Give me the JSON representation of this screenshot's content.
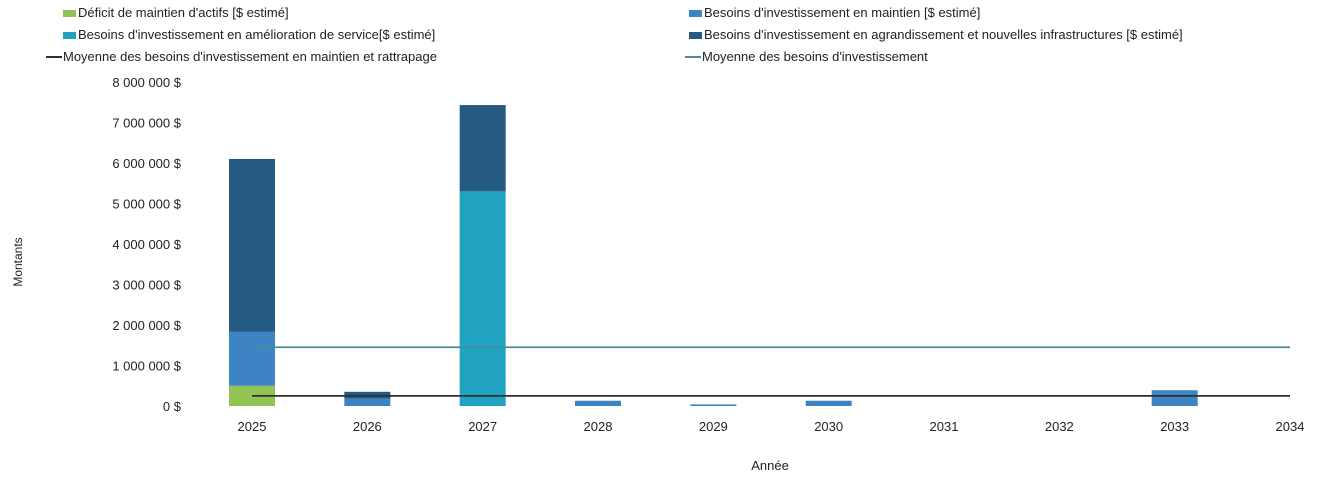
{
  "chart_data": {
    "type": "bar",
    "categories": [
      "2025",
      "2026",
      "2027",
      "2028",
      "2029",
      "2030",
      "2031",
      "2032",
      "2033",
      "2034"
    ],
    "series": [
      {
        "name": "Déficit de maintien d'actifs [$ estimé]",
        "color": "#92c353",
        "values": [
          500000,
          0,
          0,
          0,
          0,
          0,
          0,
          0,
          0,
          0
        ]
      },
      {
        "name": "Besoins d'investissement en maintien [$ estimé]",
        "color": "#3c84c3",
        "values": [
          1330000,
          180000,
          0,
          130000,
          40000,
          130000,
          0,
          0,
          390000,
          0
        ]
      },
      {
        "name": "Besoins d'investissement en amélioration de service[$ estimé]",
        "color": "#1fa3c1",
        "values": [
          0,
          0,
          5300000,
          0,
          0,
          0,
          0,
          0,
          0,
          0
        ]
      },
      {
        "name": "Besoins d'investissement en agrandissement et nouvelles infrastructures [$ estimé]",
        "color": "#255a82",
        "values": [
          4270000,
          170000,
          2130000,
          0,
          0,
          0,
          0,
          0,
          0,
          0
        ]
      }
    ],
    "lines": [
      {
        "name": "Moyenne des besoins d'investissement en maintien et rattrapage",
        "color": "#2f2f2f",
        "values": [
          250000,
          250000,
          250000,
          250000,
          250000,
          250000,
          250000,
          250000,
          250000,
          250000
        ]
      },
      {
        "name": "Moyenne des besoins d'investissement",
        "color": "#4a8c9a",
        "values": [
          1450000,
          1450000,
          1450000,
          1450000,
          1450000,
          1450000,
          1450000,
          1450000,
          1450000,
          1450000
        ]
      }
    ],
    "title": "",
    "xlabel": "Année",
    "ylabel": "Montants",
    "yticks": [
      "0 $",
      "1 000 000 $",
      "2 000 000 $",
      "3 000 000 $",
      "4 000 000 $",
      "5 000 000 $",
      "6 000 000 $",
      "7 000 000 $",
      "8 000 000 $"
    ],
    "ylim": [
      0,
      8000000
    ],
    "stacked": true,
    "grid": false,
    "legend_position": "top"
  }
}
